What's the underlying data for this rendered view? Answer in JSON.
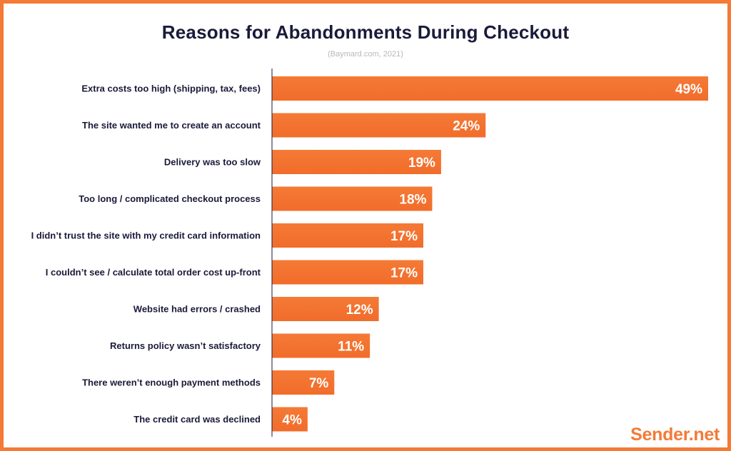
{
  "title": "Reasons for Abandonments During Checkout",
  "subtitle": "(Baymard.com, 2021)",
  "brand": "Sender.net",
  "colors": {
    "bar_top": "#f47a36",
    "bar_bottom": "#f26c2a",
    "border": "#f47a36",
    "title": "#1a1a3a",
    "label": "#1a1a3a",
    "axis": "#1a1a3a",
    "value_text": "#ffffff"
  },
  "chart_data": {
    "type": "bar",
    "orientation": "horizontal",
    "categories": [
      "Extra costs too high (shipping, tax, fees)",
      "The site wanted me to create an account",
      "Delivery was too slow",
      "Too long / complicated checkout process",
      "I didn’t trust the site with my credit card information",
      "I couldn’t see / calculate total order cost up-front",
      "Website had errors / crashed",
      "Returns policy wasn’t satisfactory",
      "There weren’t enough payment methods",
      "The credit card was declined"
    ],
    "values": [
      49,
      24,
      19,
      18,
      17,
      17,
      12,
      11,
      7,
      4
    ],
    "value_labels": [
      "49%",
      "24%",
      "19%",
      "18%",
      "17%",
      "17%",
      "12%",
      "11%",
      "7%",
      "4%"
    ],
    "title": "Reasons for Abandonments During Checkout",
    "subtitle": "(Baymard.com, 2021)",
    "xlabel": "",
    "ylabel": "",
    "xlim": [
      0,
      49
    ],
    "grid": false,
    "legend": "none"
  }
}
